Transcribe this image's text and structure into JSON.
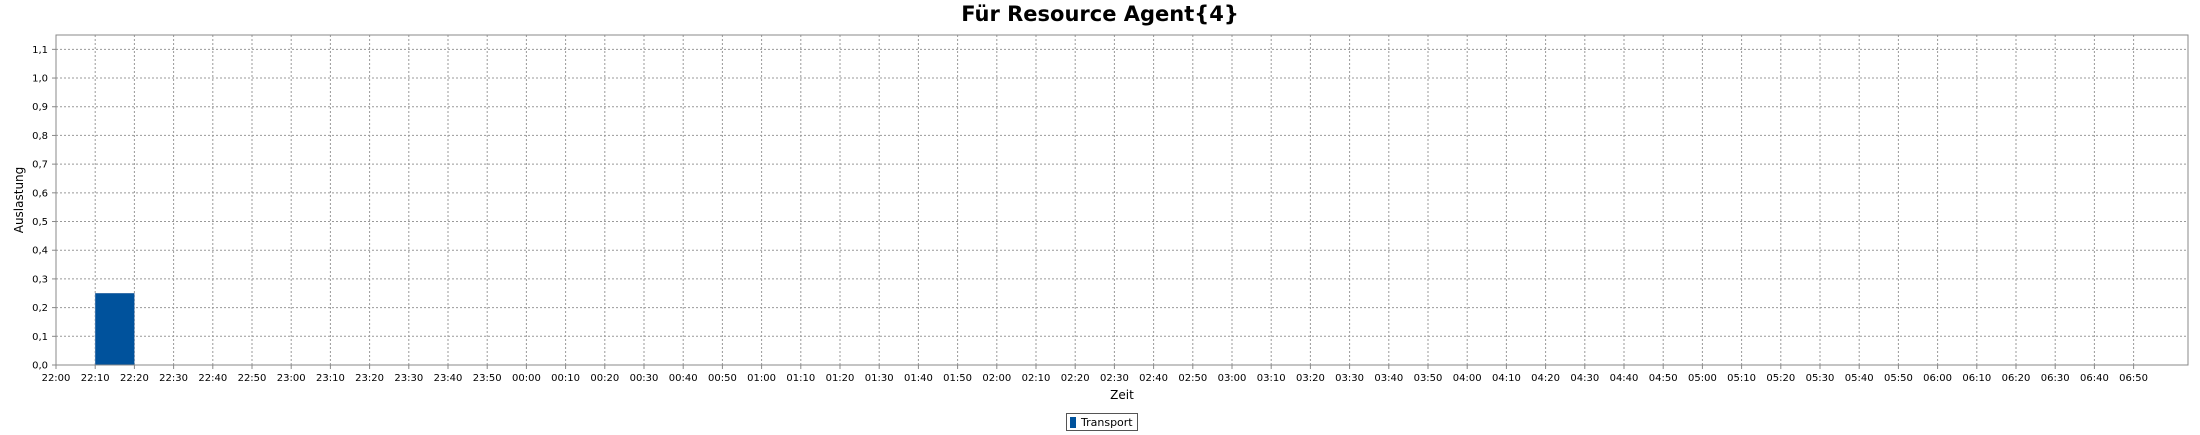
{
  "chart_data": {
    "type": "bar",
    "title": "Für Resource Agent{4}",
    "xlabel": "Zeit",
    "ylabel": "Auslastung",
    "ylim": [
      0,
      1.15
    ],
    "yticks": [
      "0,0",
      "0,1",
      "0,2",
      "0,3",
      "0,4",
      "0,5",
      "0,6",
      "0,7",
      "0,8",
      "0,9",
      "1,0",
      "1,1"
    ],
    "yticks_values": [
      0,
      0.1,
      0.2,
      0.3,
      0.4,
      0.5,
      0.6,
      0.7,
      0.8,
      0.9,
      1.0,
      1.1
    ],
    "xticks": [
      "22:00",
      "22:10",
      "22:20",
      "22:30",
      "22:40",
      "22:50",
      "23:00",
      "23:10",
      "23:20",
      "23:30",
      "23:40",
      "23:50",
      "00:00",
      "00:10",
      "00:20",
      "00:30",
      "00:40",
      "00:50",
      "01:00",
      "01:10",
      "01:20",
      "01:30",
      "01:40",
      "01:50",
      "02:00",
      "02:10",
      "02:20",
      "02:30",
      "02:40",
      "02:50",
      "03:00",
      "03:10",
      "03:20",
      "03:30",
      "03:40",
      "03:50",
      "04:00",
      "04:10",
      "04:20",
      "04:30",
      "04:40",
      "04:50",
      "05:00",
      "05:10",
      "05:20",
      "05:30",
      "05:40",
      "05:50",
      "06:00",
      "06:10",
      "06:20",
      "06:30",
      "06:40",
      "06:50"
    ],
    "grid": true,
    "legend_position": "bottom-center",
    "series": [
      {
        "name": "Transport",
        "color": "#00529c",
        "bars": [
          {
            "start": "22:10",
            "end": "22:20",
            "value": 0.25
          }
        ]
      }
    ]
  }
}
